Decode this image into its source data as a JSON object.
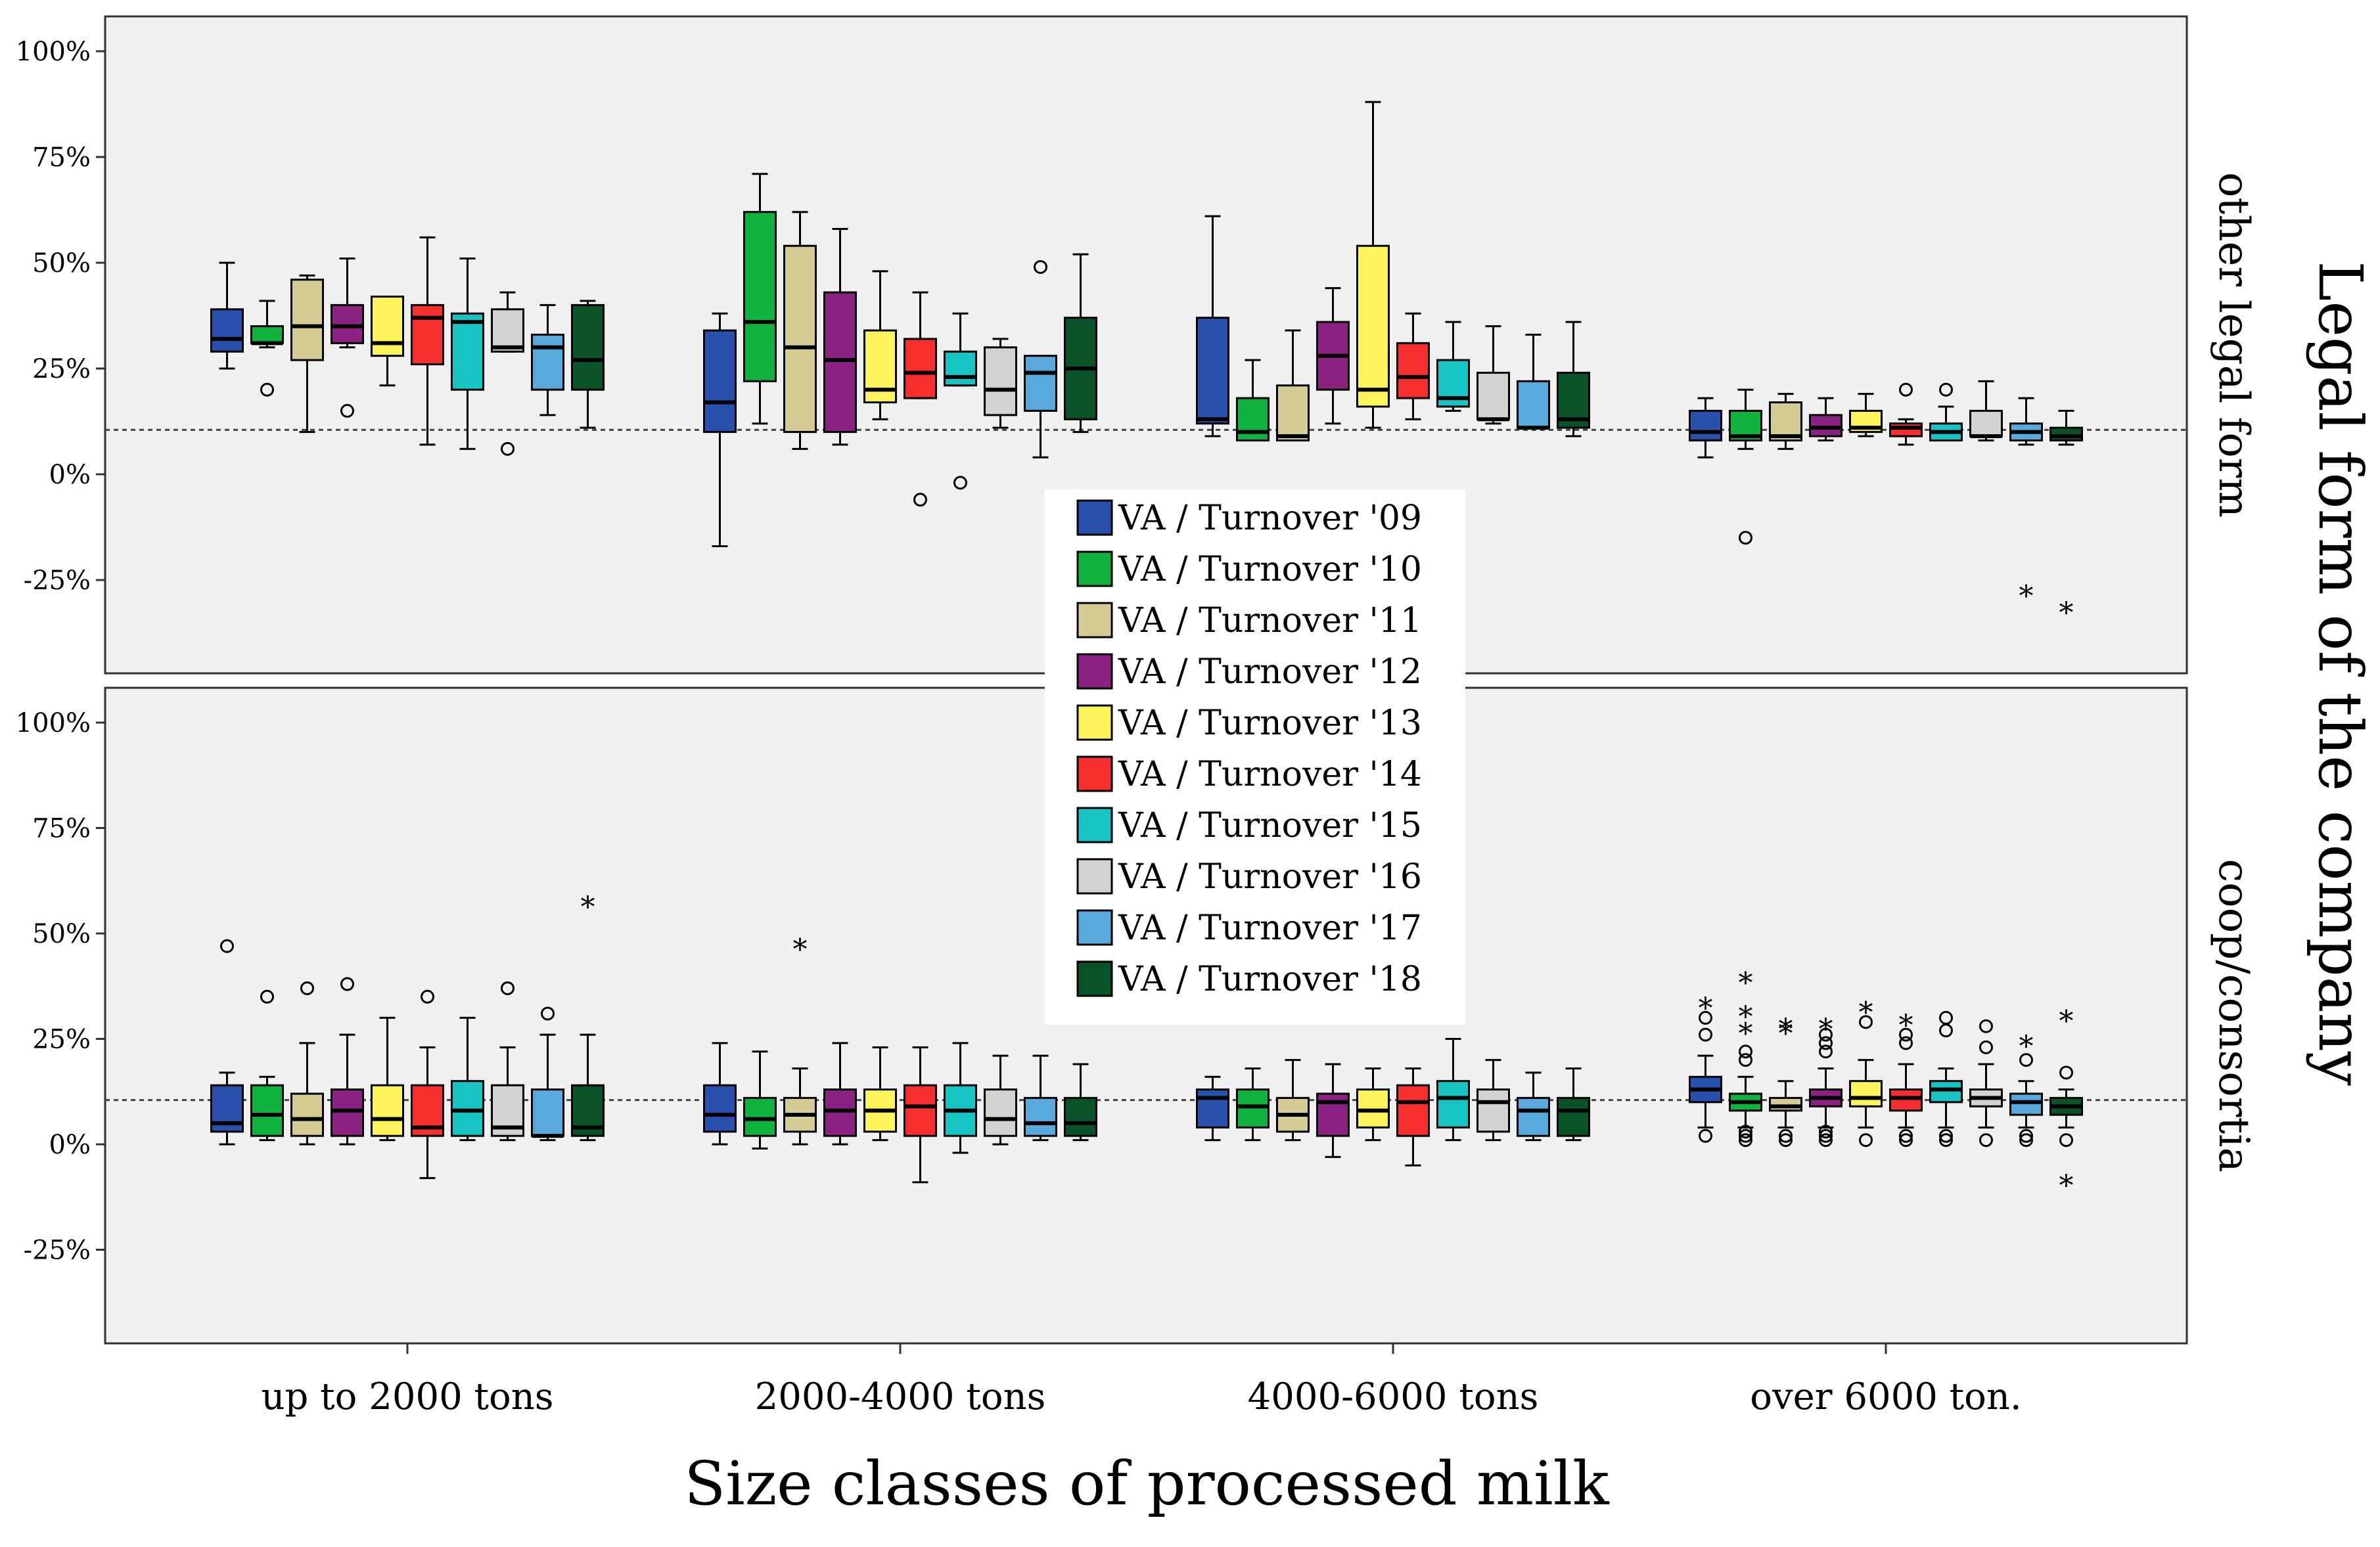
{
  "chart_data": {
    "type": "boxplot",
    "xlabel": "Size classes of processed milk",
    "ylabel": "Legal form of the company",
    "yticks": [
      "100%",
      "75%",
      "50%",
      "25%",
      "0%",
      "-25%"
    ],
    "ytick_values": [
      100,
      75,
      50,
      25,
      0,
      -25
    ],
    "ylim": [
      -47,
      108
    ],
    "reference_line": 10.5,
    "categories": [
      "up to 2000 tons",
      "2000-4000 tons",
      "4000-6000 tons",
      "over 6000 ton."
    ],
    "series": [
      {
        "name": "VA / Turnover '09",
        "color": "#2a50ae"
      },
      {
        "name": "VA / Turnover '10",
        "color": "#0fb33e"
      },
      {
        "name": "VA / Turnover '11",
        "color": "#d4cc94"
      },
      {
        "name": "VA / Turnover '12",
        "color": "#8b2180"
      },
      {
        "name": "VA / Turnover '13",
        "color": "#fcf45a"
      },
      {
        "name": "VA / Turnover '14",
        "color": "#f62f2e"
      },
      {
        "name": "VA / Turnover '15",
        "color": "#17c4c4"
      },
      {
        "name": "VA / Turnover '16",
        "color": "#d2d2d2"
      },
      {
        "name": "VA / Turnover '17",
        "color": "#5aa9dc"
      },
      {
        "name": "VA / Turnover '18",
        "color": "#0a5227"
      }
    ],
    "panels": [
      {
        "facet_label": "other legal form",
        "boxes": [
          [
            {
              "min": 25,
              "q1": 29,
              "median": 32,
              "q3": 39,
              "max": 50
            },
            {
              "min": 30,
              "q1": 31,
              "median": 31,
              "q3": 35,
              "max": 41,
              "outliers": [
                20
              ]
            },
            {
              "min": 10,
              "q1": 27,
              "median": 35,
              "q3": 46,
              "max": 47
            },
            {
              "min": 30,
              "q1": 31,
              "median": 35,
              "q3": 40,
              "max": 51,
              "outliers": [
                15
              ]
            },
            {
              "min": 21,
              "q1": 28,
              "median": 31,
              "q3": 42,
              "max": 42
            },
            {
              "min": 7,
              "q1": 26,
              "median": 37,
              "q3": 40,
              "max": 56
            },
            {
              "min": 6,
              "q1": 20,
              "median": 36,
              "q3": 38,
              "max": 51
            },
            {
              "min": 29,
              "q1": 29,
              "median": 30,
              "q3": 39,
              "max": 43,
              "outliers": [
                6
              ]
            },
            {
              "min": 14,
              "q1": 20,
              "median": 30,
              "q3": 33,
              "max": 40
            },
            {
              "min": 11,
              "q1": 20,
              "median": 27,
              "q3": 40,
              "max": 41
            }
          ],
          [
            {
              "min": -17,
              "q1": 10,
              "median": 17,
              "q3": 34,
              "max": 38
            },
            {
              "min": 12,
              "q1": 22,
              "median": 36,
              "q3": 62,
              "max": 71
            },
            {
              "min": 6,
              "q1": 10,
              "median": 30,
              "q3": 54,
              "max": 62
            },
            {
              "min": 7,
              "q1": 10,
              "median": 27,
              "q3": 43,
              "max": 58
            },
            {
              "min": 13,
              "q1": 17,
              "median": 20,
              "q3": 34,
              "max": 48
            },
            {
              "min": 18,
              "q1": 18,
              "median": 24,
              "q3": 32,
              "max": 43,
              "outliers": [
                -6
              ]
            },
            {
              "min": 21,
              "q1": 21,
              "median": 23,
              "q3": 29,
              "max": 38,
              "outliers": [
                -2
              ]
            },
            {
              "min": 11,
              "q1": 14,
              "median": 20,
              "q3": 30,
              "max": 32
            },
            {
              "min": 4,
              "q1": 15,
              "median": 24,
              "q3": 28,
              "max": 28,
              "outliers": [
                49
              ]
            },
            {
              "min": 10,
              "q1": 13,
              "median": 25,
              "q3": 37,
              "max": 52
            }
          ],
          [
            {
              "min": 9,
              "q1": 12,
              "median": 13,
              "q3": 37,
              "max": 61
            },
            {
              "min": 8,
              "q1": 8,
              "median": 10,
              "q3": 18,
              "max": 27
            },
            {
              "min": 8,
              "q1": 8,
              "median": 9,
              "q3": 21,
              "max": 34
            },
            {
              "min": 12,
              "q1": 20,
              "median": 28,
              "q3": 36,
              "max": 44
            },
            {
              "min": 11,
              "q1": 16,
              "median": 20,
              "q3": 54,
              "max": 88
            },
            {
              "min": 13,
              "q1": 18,
              "median": 23,
              "q3": 31,
              "max": 38
            },
            {
              "min": 15,
              "q1": 16,
              "median": 18,
              "q3": 27,
              "max": 36
            },
            {
              "min": 12,
              "q1": 13,
              "median": 13,
              "q3": 24,
              "max": 35
            },
            {
              "min": 11,
              "q1": 11,
              "median": 11,
              "q3": 22,
              "max": 33
            },
            {
              "min": 9,
              "q1": 11,
              "median": 13,
              "q3": 24,
              "max": 36
            }
          ],
          [
            {
              "min": 4,
              "q1": 8,
              "median": 10,
              "q3": 15,
              "max": 18
            },
            {
              "min": 6,
              "q1": 8,
              "median": 9,
              "q3": 15,
              "max": 20,
              "outliers": [
                -15
              ]
            },
            {
              "min": 6,
              "q1": 8,
              "median": 9,
              "q3": 17,
              "max": 19
            },
            {
              "min": 8,
              "q1": 9,
              "median": 11,
              "q3": 14,
              "max": 18
            },
            {
              "min": 9,
              "q1": 10,
              "median": 11,
              "q3": 15,
              "max": 19
            },
            {
              "min": 7,
              "q1": 9,
              "median": 11,
              "q3": 12,
              "max": 13,
              "outliers": [
                20
              ]
            },
            {
              "min": 8,
              "q1": 8,
              "median": 10,
              "q3": 12,
              "max": 16,
              "outliers": [
                20
              ]
            },
            {
              "min": 8,
              "q1": 9,
              "median": 9,
              "q3": 15,
              "max": 22
            },
            {
              "min": 7,
              "q1": 8,
              "median": 10,
              "q3": 12,
              "max": 18,
              "extremes": [
                -28
              ]
            },
            {
              "min": 7,
              "q1": 8,
              "median": 9,
              "q3": 11,
              "max": 15,
              "extremes": [
                -32
              ]
            }
          ]
        ]
      },
      {
        "facet_label": "coop/consortia",
        "boxes": [
          [
            {
              "min": 0,
              "q1": 3,
              "median": 5,
              "q3": 14,
              "max": 17,
              "outliers": [
                47
              ]
            },
            {
              "min": 1,
              "q1": 2,
              "median": 7,
              "q3": 14,
              "max": 16,
              "outliers": [
                35
              ]
            },
            {
              "min": 0,
              "q1": 2,
              "median": 6,
              "q3": 12,
              "max": 24,
              "outliers": [
                37
              ]
            },
            {
              "min": 0,
              "q1": 2,
              "median": 8,
              "q3": 13,
              "max": 26,
              "outliers": [
                38
              ]
            },
            {
              "min": 1,
              "q1": 2,
              "median": 6,
              "q3": 14,
              "max": 30
            },
            {
              "min": -8,
              "q1": 2,
              "median": 4,
              "q3": 14,
              "max": 23,
              "outliers": [
                35
              ]
            },
            {
              "min": 1,
              "q1": 2,
              "median": 8,
              "q3": 15,
              "max": 30
            },
            {
              "min": 1,
              "q1": 2,
              "median": 4,
              "q3": 14,
              "max": 23,
              "outliers": [
                37
              ]
            },
            {
              "min": 1,
              "q1": 2,
              "median": 2,
              "q3": 13,
              "max": 26,
              "outliers": [
                31
              ]
            },
            {
              "min": 1,
              "q1": 2,
              "median": 4,
              "q3": 14,
              "max": 26,
              "extremes": [
                57
              ]
            }
          ],
          [
            {
              "min": 0,
              "q1": 3,
              "median": 7,
              "q3": 14,
              "max": 24
            },
            {
              "min": -1,
              "q1": 2,
              "median": 6,
              "q3": 11,
              "max": 22
            },
            {
              "min": 0,
              "q1": 3,
              "median": 7,
              "q3": 11,
              "max": 18,
              "extremes": [
                47
              ]
            },
            {
              "min": 0,
              "q1": 2,
              "median": 8,
              "q3": 13,
              "max": 24
            },
            {
              "min": 1,
              "q1": 3,
              "median": 8,
              "q3": 13,
              "max": 23
            },
            {
              "min": -9,
              "q1": 2,
              "median": 9,
              "q3": 14,
              "max": 23
            },
            {
              "min": -2,
              "q1": 2,
              "median": 8,
              "q3": 14,
              "max": 24
            },
            {
              "min": 0,
              "q1": 2,
              "median": 6,
              "q3": 13,
              "max": 21
            },
            {
              "min": 1,
              "q1": 2,
              "median": 5,
              "q3": 11,
              "max": 21
            },
            {
              "min": 1,
              "q1": 2,
              "median": 5,
              "q3": 11,
              "max": 19
            }
          ],
          [
            {
              "min": 1,
              "q1": 4,
              "median": 11,
              "q3": 13,
              "max": 16
            },
            {
              "min": 1,
              "q1": 4,
              "median": 9,
              "q3": 13,
              "max": 18
            },
            {
              "min": 1,
              "q1": 3,
              "median": 7,
              "q3": 11,
              "max": 20
            },
            {
              "min": -3,
              "q1": 2,
              "median": 10,
              "q3": 12,
              "max": 19
            },
            {
              "min": 1,
              "q1": 4,
              "median": 8,
              "q3": 13,
              "max": 18
            },
            {
              "min": -5,
              "q1": 2,
              "median": 10,
              "q3": 14,
              "max": 18
            },
            {
              "min": 1,
              "q1": 4,
              "median": 11,
              "q3": 15,
              "max": 25
            },
            {
              "min": 1,
              "q1": 3,
              "median": 10,
              "q3": 13,
              "max": 20
            },
            {
              "min": 1,
              "q1": 2,
              "median": 8,
              "q3": 11,
              "max": 17
            },
            {
              "min": 1,
              "q1": 2,
              "median": 8,
              "q3": 11,
              "max": 18
            }
          ],
          [
            {
              "min": 4,
              "q1": 10,
              "median": 13,
              "q3": 16,
              "max": 21,
              "outliers": [
                2,
                26,
                30
              ],
              "extremes": [
                33
              ]
            },
            {
              "min": 4,
              "q1": 8,
              "median": 10,
              "q3": 12,
              "max": 16,
              "outliers": [
                1,
                2,
                3,
                20,
                22
              ],
              "extremes": [
                27,
                31,
                39
              ]
            },
            {
              "min": 4,
              "q1": 8,
              "median": 9,
              "q3": 11,
              "max": 15,
              "outliers": [
                1,
                2
              ],
              "extremes": [
                27,
                28
              ]
            },
            {
              "min": 4,
              "q1": 9,
              "median": 11,
              "q3": 13,
              "max": 18,
              "outliers": [
                1,
                2,
                3,
                22,
                24,
                26
              ],
              "extremes": [
                28
              ]
            },
            {
              "min": 4,
              "q1": 9,
              "median": 11,
              "q3": 15,
              "max": 20,
              "outliers": [
                1,
                29
              ],
              "extremes": [
                32
              ]
            },
            {
              "min": 4,
              "q1": 8,
              "median": 11,
              "q3": 13,
              "max": 19,
              "outliers": [
                1,
                2,
                24,
                26
              ],
              "extremes": [
                29
              ]
            },
            {
              "min": 4,
              "q1": 10,
              "median": 13,
              "q3": 15,
              "max": 18,
              "outliers": [
                1,
                2,
                27,
                30
              ]
            },
            {
              "min": 4,
              "q1": 9,
              "median": 11,
              "q3": 13,
              "max": 19,
              "outliers": [
                1,
                23,
                28
              ]
            },
            {
              "min": 4,
              "q1": 7,
              "median": 10,
              "q3": 12,
              "max": 15,
              "outliers": [
                1,
                2,
                20
              ],
              "extremes": [
                24
              ]
            },
            {
              "min": 4,
              "q1": 7,
              "median": 9,
              "q3": 11,
              "max": 13,
              "outliers": [
                1,
                17
              ],
              "extremes": [
                -9,
                30
              ]
            }
          ]
        ]
      }
    ]
  }
}
